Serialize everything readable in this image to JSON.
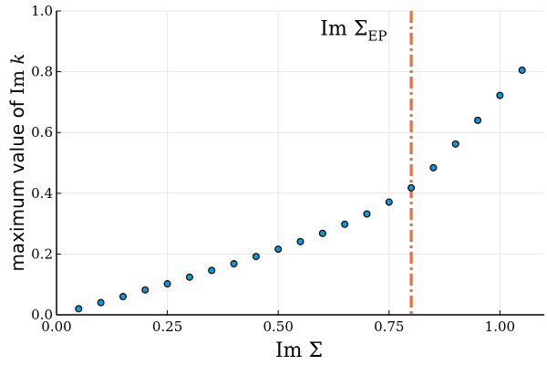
{
  "chart_data": {
    "type": "scatter",
    "xlabel": "Im Σ",
    "ylabel": "maximum value of Im k",
    "ylabel_parts": {
      "text": "maximum value of ",
      "math": "Im ",
      "var": "k"
    },
    "xlim": [
      0.0,
      1.1
    ],
    "ylim": [
      0.0,
      1.0
    ],
    "x_ticks": [
      0.0,
      0.25,
      0.5,
      0.75,
      1.0
    ],
    "x_tick_labels": [
      "0.00",
      "0.25",
      "0.50",
      "0.75",
      "1.00"
    ],
    "y_ticks": [
      0.0,
      0.2,
      0.4,
      0.6,
      0.8,
      1.0
    ],
    "y_tick_labels": [
      "0.0",
      "0.2",
      "0.4",
      "0.6",
      "0.8",
      "1.0"
    ],
    "grid": true,
    "legend": "none",
    "series": [
      {
        "marker_color": "#0a9ae0",
        "marker_edge_color": "#000000",
        "points": [
          {
            "x": 0.05,
            "y": 0.02
          },
          {
            "x": 0.1,
            "y": 0.04
          },
          {
            "x": 0.15,
            "y": 0.06
          },
          {
            "x": 0.2,
            "y": 0.082
          },
          {
            "x": 0.25,
            "y": 0.102
          },
          {
            "x": 0.3,
            "y": 0.124
          },
          {
            "x": 0.35,
            "y": 0.146
          },
          {
            "x": 0.4,
            "y": 0.168
          },
          {
            "x": 0.45,
            "y": 0.192
          },
          {
            "x": 0.5,
            "y": 0.216
          },
          {
            "x": 0.55,
            "y": 0.241
          },
          {
            "x": 0.6,
            "y": 0.268
          },
          {
            "x": 0.65,
            "y": 0.298
          },
          {
            "x": 0.7,
            "y": 0.332
          },
          {
            "x": 0.75,
            "y": 0.371
          },
          {
            "x": 0.8,
            "y": 0.418
          },
          {
            "x": 0.85,
            "y": 0.484
          },
          {
            "x": 0.9,
            "y": 0.562
          },
          {
            "x": 0.95,
            "y": 0.64
          },
          {
            "x": 1.0,
            "y": 0.722
          },
          {
            "x": 1.05,
            "y": 0.805
          }
        ]
      }
    ],
    "vline": {
      "x": 0.8,
      "color": "#e26f46",
      "style": "dash-dot"
    },
    "annotation": {
      "text": "Im Σ",
      "subscript": "EP",
      "x": 0.67,
      "y": 0.945
    }
  }
}
